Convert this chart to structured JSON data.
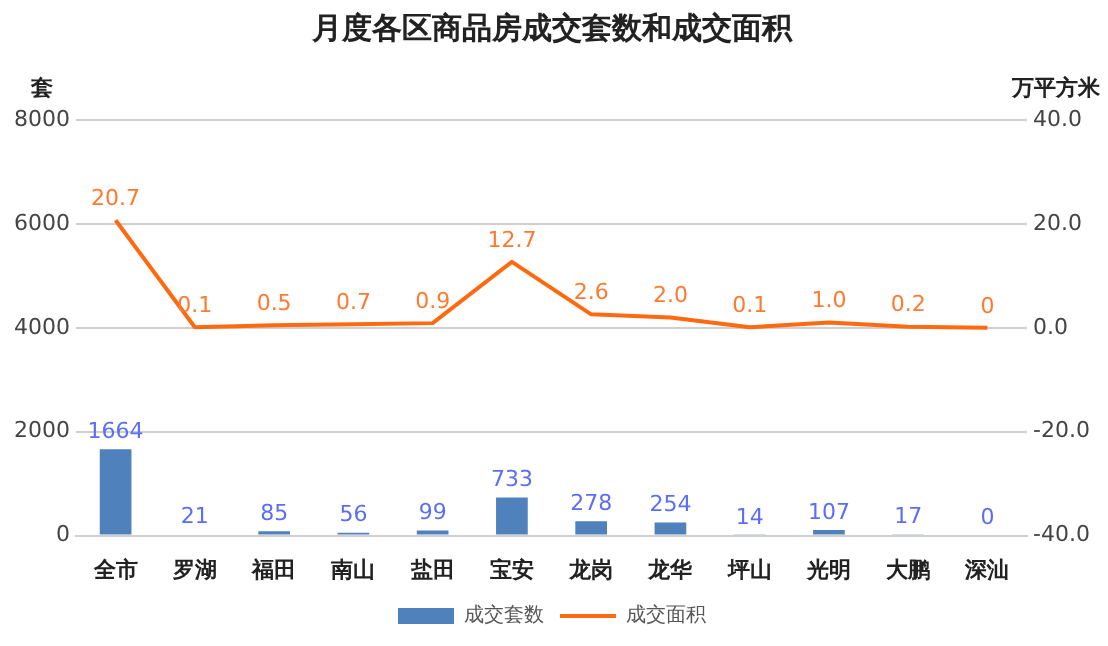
{
  "chart_data": {
    "type": "bar",
    "title": "月度各区商品房成交套数和成交面积",
    "ylabel": "套",
    "y2label": "万平方米",
    "categories": [
      "全市",
      "罗湖",
      "福田",
      "南山",
      "盐田",
      "宝安",
      "龙岗",
      "龙华",
      "坪山",
      "光明",
      "大鹏",
      "深汕"
    ],
    "series": [
      {
        "name": "成交套数",
        "color": "#4f81bd",
        "values": [
          1664,
          21,
          85,
          56,
          99,
          733,
          278,
          254,
          14,
          107,
          17,
          0
        ],
        "value_labels": [
          "1664",
          "21",
          "85",
          "56",
          "99",
          "733",
          "278",
          "254",
          "14",
          "107",
          "17",
          "0"
        ]
      },
      {
        "name": "成交面积",
        "type": "line",
        "axis": "y2",
        "color": "#ff6a10",
        "values": [
          20.7,
          0.1,
          0.5,
          0.7,
          0.9,
          12.7,
          2.6,
          2.0,
          0.1,
          1.0,
          0.2,
          0
        ],
        "value_labels": [
          "20.7",
          "0.1",
          "0.5",
          "0.7",
          "0.9",
          "12.7",
          "2.6",
          "2.0",
          "0.1",
          "1.0",
          "0.2",
          "0"
        ]
      }
    ],
    "ylim": [
      0,
      8000
    ],
    "yticks": [
      0,
      2000,
      4000,
      6000,
      8000
    ],
    "y2lim": [
      -40,
      40
    ],
    "y2ticks": [
      {
        "value": -40,
        "label": "-40.0"
      },
      {
        "value": -20,
        "label": "-20.0"
      },
      {
        "value": 0,
        "label": "0.0"
      },
      {
        "value": 20,
        "label": "20.0"
      },
      {
        "value": 40,
        "label": "40.0"
      }
    ],
    "grid": "y",
    "legend": "bottom",
    "marker": "none",
    "line_style": "solid"
  }
}
